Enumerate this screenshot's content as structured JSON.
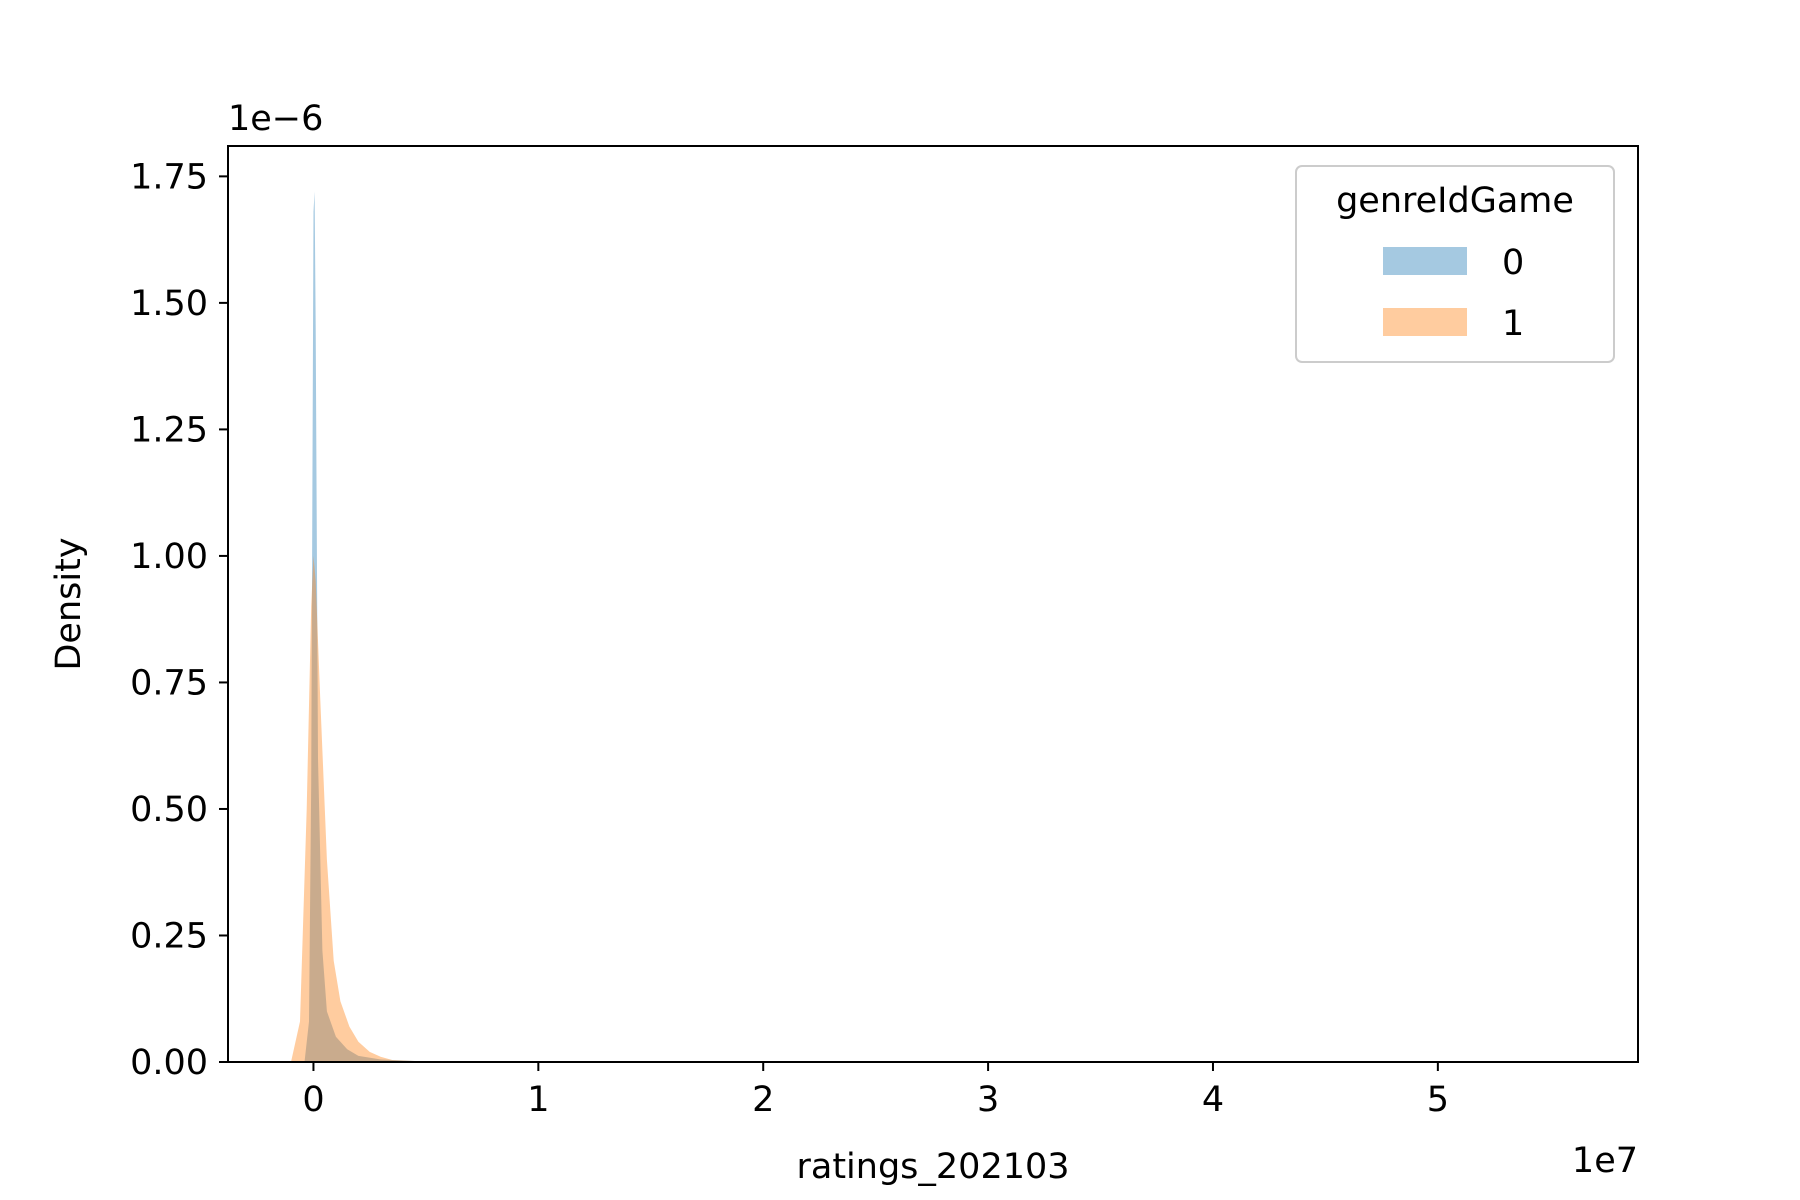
{
  "chart_data": {
    "type": "area",
    "xlabel": "ratings_202103",
    "ylabel": "Density",
    "x_offset_label": "1e7",
    "y_offset_label": "1e−6",
    "xlim": [
      -0.38,
      5.89
    ],
    "ylim": [
      0,
      1.81
    ],
    "x_ticks": [
      0,
      1,
      2,
      3,
      4,
      5
    ],
    "x_tick_labels": [
      "0",
      "1",
      "2",
      "3",
      "4",
      "5"
    ],
    "y_ticks": [
      0,
      0.25,
      0.5,
      0.75,
      1.0,
      1.25,
      1.5,
      1.75
    ],
    "y_tick_labels": [
      "0.00",
      "0.25",
      "0.50",
      "0.75",
      "1.00",
      "1.25",
      "1.50",
      "1.75"
    ],
    "grid": false,
    "legend": {
      "title": "genreIdGame",
      "placement": "top-right",
      "entries": [
        "0",
        "1"
      ]
    },
    "series": [
      {
        "name": "0",
        "color": "#1f77b4",
        "x": [
          -0.04,
          -0.02,
          -0.01,
          0.0,
          0.005,
          0.01,
          0.02,
          0.04,
          0.06,
          0.1,
          0.15,
          0.2,
          0.3,
          0.5,
          1.0,
          5.3
        ],
        "y": [
          0,
          0.08,
          0.55,
          1.68,
          1.72,
          1.45,
          0.6,
          0.22,
          0.1,
          0.05,
          0.025,
          0.012,
          0.005,
          0.001,
          0,
          0
        ]
      },
      {
        "name": "1",
        "color": "#ff7f0e",
        "x": [
          -0.1,
          -0.06,
          -0.03,
          -0.01,
          0.0,
          0.01,
          0.03,
          0.06,
          0.09,
          0.12,
          0.16,
          0.2,
          0.25,
          0.3,
          0.35,
          0.5,
          1.0,
          5.3
        ],
        "y": [
          0,
          0.08,
          0.5,
          0.9,
          1.0,
          0.95,
          0.72,
          0.4,
          0.2,
          0.12,
          0.07,
          0.04,
          0.02,
          0.01,
          0.004,
          0.001,
          0,
          0
        ]
      }
    ]
  }
}
